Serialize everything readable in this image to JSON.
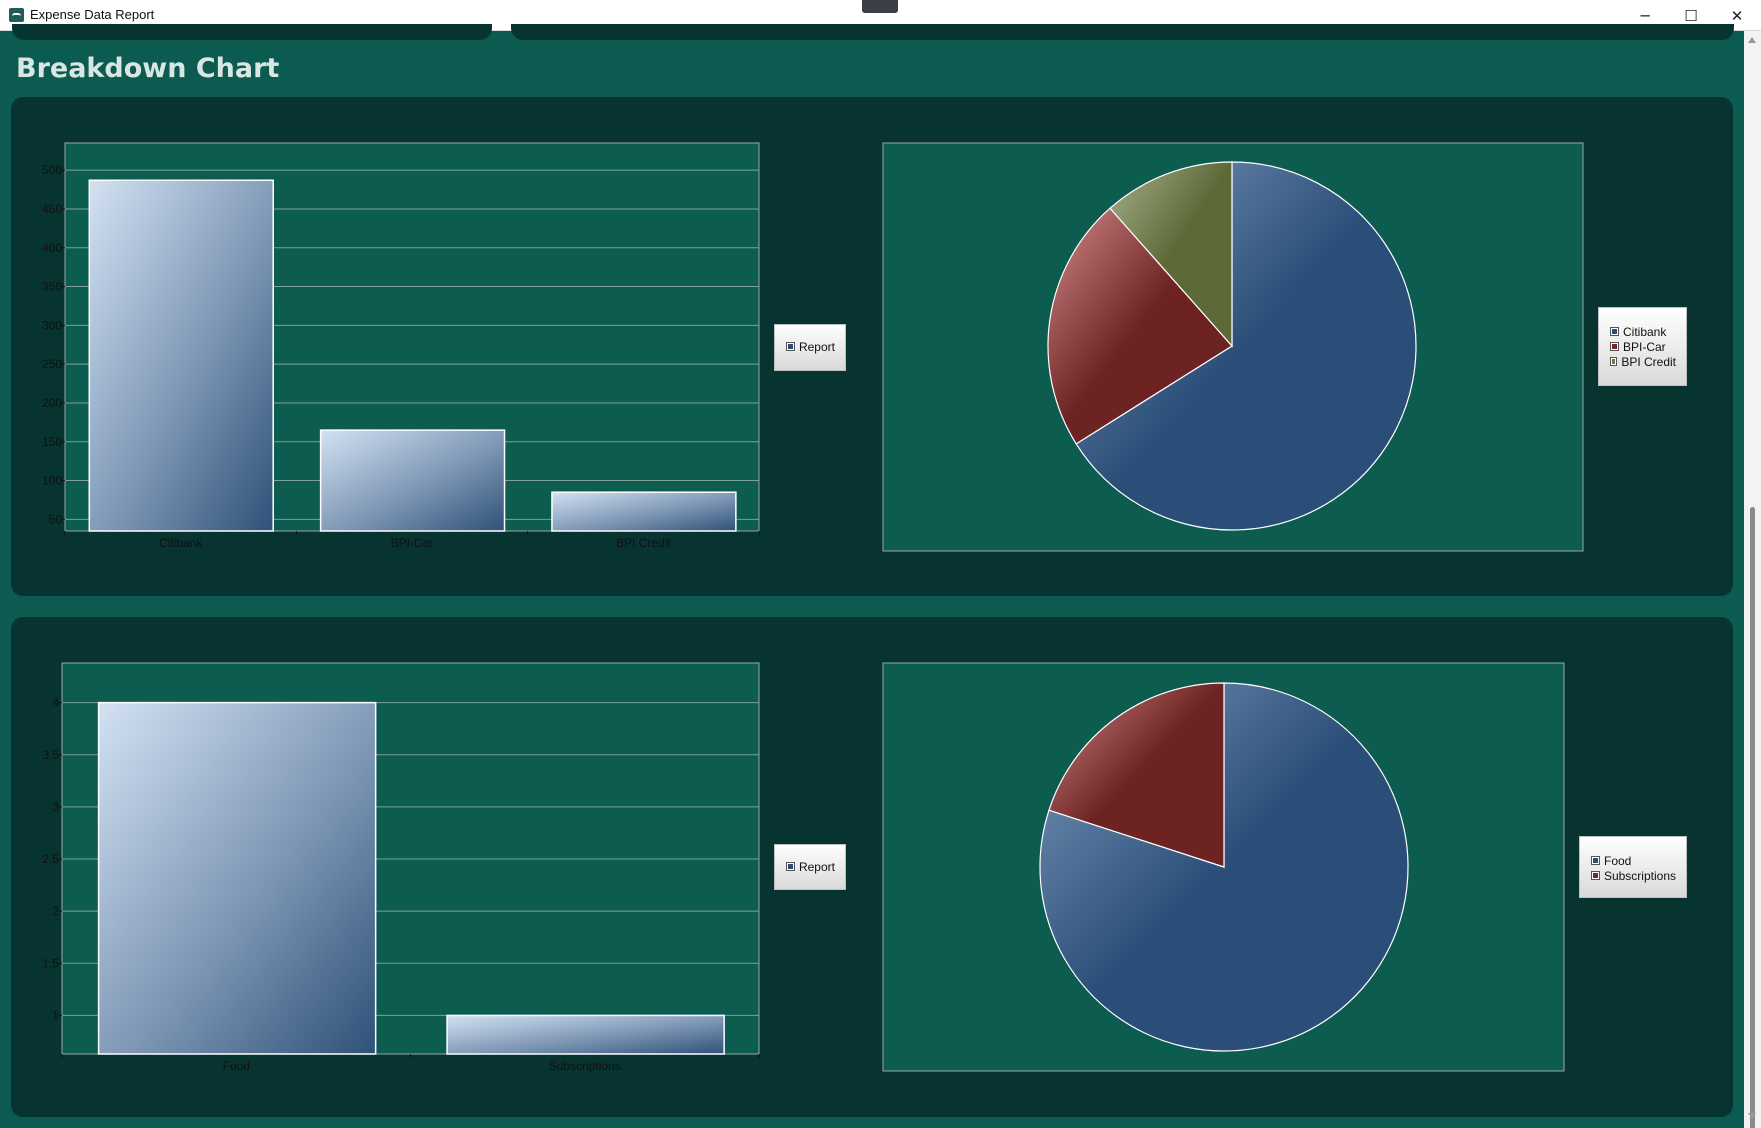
{
  "window": {
    "title": "Expense Data Report",
    "minimize_glyph": "─",
    "maximize_glyph": "☐",
    "close_glyph": "✕"
  },
  "page": {
    "heading": "Breakdown Chart"
  },
  "colors": {
    "page_bg": "#0b5b50",
    "panel_bg": "#073430",
    "plot_bg": "#0c5c50",
    "series_blue": "#2b4e78",
    "series_red": "#772a2a",
    "series_olive": "#6b7b48"
  },
  "charts": {
    "accounts_bar": {
      "legend": [
        "Report"
      ]
    },
    "accounts_pie": {
      "legend": [
        "Citibank",
        "BPI-Car",
        "BPI Credit"
      ]
    },
    "categories_bar": {
      "legend": [
        "Report"
      ]
    },
    "categories_pie": {
      "legend": [
        "Food",
        "Subscriptions"
      ]
    }
  },
  "chart_data": [
    {
      "type": "bar",
      "categories": [
        "Citibank",
        "BPI-Car",
        "BPI Credit"
      ],
      "series": [
        {
          "name": "Report",
          "values": [
            487,
            165,
            85
          ]
        }
      ],
      "ylim": [
        35,
        535
      ],
      "yticks": [
        50,
        100,
        150,
        200,
        250,
        300,
        350,
        400,
        450,
        500
      ],
      "grid": true,
      "legend": "right"
    },
    {
      "type": "pie",
      "labels": [
        "Citibank",
        "BPI-Car",
        "BPI Credit"
      ],
      "values": [
        487,
        165,
        85
      ],
      "legend": "right"
    },
    {
      "type": "bar",
      "categories": [
        "Food",
        "Subscriptions"
      ],
      "series": [
        {
          "name": "Report",
          "values": [
            4,
            1
          ]
        }
      ],
      "ylim": [
        0.63,
        4.38
      ],
      "yticks": [
        1,
        1.5,
        2,
        2.5,
        3,
        3.5,
        4
      ],
      "grid": true,
      "legend": "right"
    },
    {
      "type": "pie",
      "labels": [
        "Food",
        "Subscriptions"
      ],
      "values": [
        4,
        1
      ],
      "legend": "right"
    }
  ]
}
